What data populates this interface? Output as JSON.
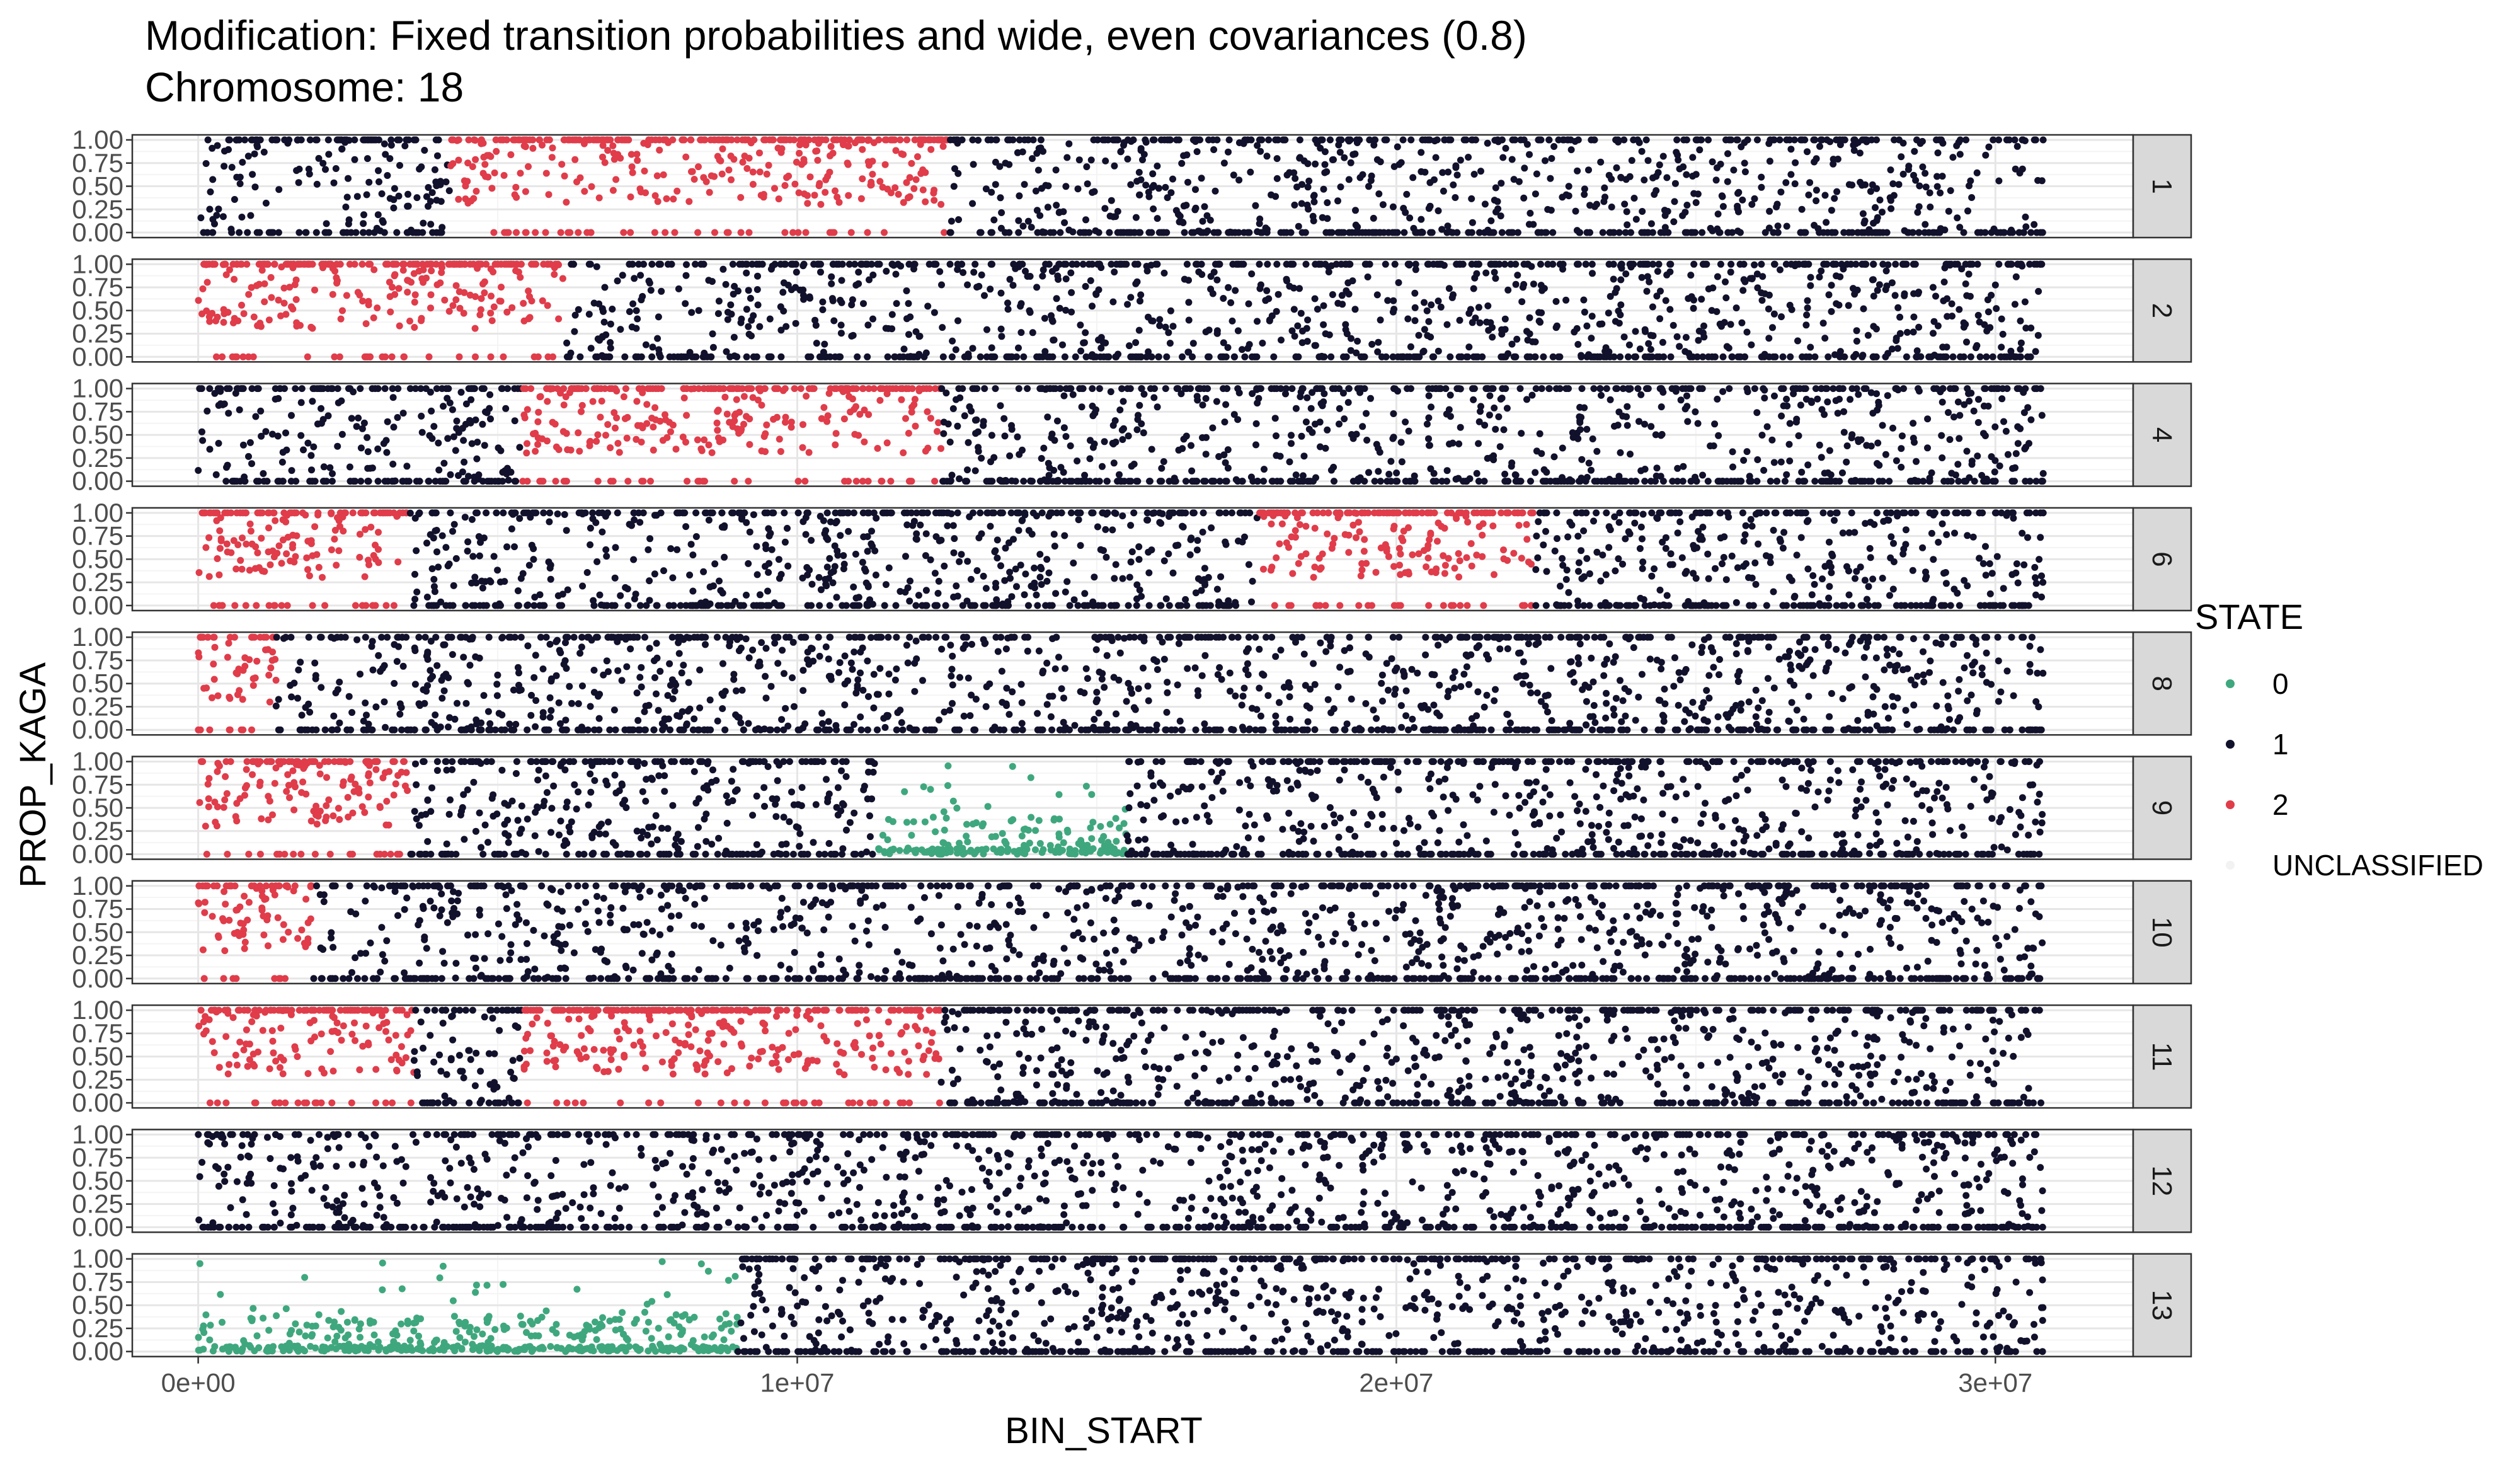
{
  "chart_data": {
    "type": "scatter",
    "title": "Modification:  Fixed transition probabilities and wide, even covariances (0.8)",
    "subtitle": "Chromosome:  18",
    "xlabel": "BIN_START",
    "ylabel": "PROP_KAGA",
    "xlim": [
      -1100000,
      32300000
    ],
    "ylim": [
      0,
      1
    ],
    "x_ticks": [
      {
        "value": 0,
        "label": "0e+00"
      },
      {
        "value": 10000000,
        "label": "1e+07"
      },
      {
        "value": 20000000,
        "label": "2e+07"
      },
      {
        "value": 30000000,
        "label": "3e+07"
      }
    ],
    "y_ticks": [
      {
        "value": 0,
        "label": "0.00"
      },
      {
        "value": 0.25,
        "label": "0.25"
      },
      {
        "value": 0.5,
        "label": "0.50"
      },
      {
        "value": 0.75,
        "label": "0.75"
      },
      {
        "value": 1,
        "label": "1.00"
      }
    ],
    "grid": true,
    "legend": {
      "title": "STATE",
      "position": "right",
      "entries": [
        {
          "label": "0",
          "color": "#3fa77e"
        },
        {
          "label": "1",
          "color": "#12112c"
        },
        {
          "label": "2",
          "color": "#e03c4a"
        },
        {
          "label": "UNCLASSIFIED",
          "color": "#f2f2f2"
        }
      ]
    },
    "panels": [
      {
        "strip": "1",
        "segments": [
          {
            "x0": 0,
            "x1": 4200000,
            "state": "1"
          },
          {
            "x0": 4200000,
            "x1": 12500000,
            "state": "2"
          },
          {
            "x0": 12500000,
            "x1": 30800000,
            "state": "1"
          }
        ]
      },
      {
        "strip": "2",
        "segments": [
          {
            "x0": 0,
            "x1": 6100000,
            "state": "2"
          },
          {
            "x0": 6100000,
            "x1": 30800000,
            "state": "1"
          }
        ]
      },
      {
        "strip": "4",
        "segments": [
          {
            "x0": 0,
            "x1": 5400000,
            "state": "1"
          },
          {
            "x0": 5400000,
            "x1": 12400000,
            "state": "2"
          },
          {
            "x0": 12400000,
            "x1": 30800000,
            "state": "1"
          }
        ]
      },
      {
        "strip": "6",
        "segments": [
          {
            "x0": 0,
            "x1": 3500000,
            "state": "2"
          },
          {
            "x0": 3500000,
            "x1": 17700000,
            "state": "1"
          },
          {
            "x0": 17700000,
            "x1": 22300000,
            "state": "2"
          },
          {
            "x0": 22300000,
            "x1": 30800000,
            "state": "1"
          }
        ]
      },
      {
        "strip": "8",
        "segments": [
          {
            "x0": 0,
            "x1": 1300000,
            "state": "2"
          },
          {
            "x0": 1300000,
            "x1": 30800000,
            "state": "1"
          }
        ]
      },
      {
        "strip": "9",
        "segments": [
          {
            "x0": 0,
            "x1": 3500000,
            "state": "2"
          },
          {
            "x0": 3500000,
            "x1": 11300000,
            "state": "1"
          },
          {
            "x0": 11300000,
            "x1": 15500000,
            "state": "0"
          },
          {
            "x0": 15500000,
            "x1": 30800000,
            "state": "1"
          }
        ]
      },
      {
        "strip": "10",
        "segments": [
          {
            "x0": 0,
            "x1": 1900000,
            "state": "2"
          },
          {
            "x0": 1900000,
            "x1": 30800000,
            "state": "1"
          }
        ]
      },
      {
        "strip": "11",
        "segments": [
          {
            "x0": 0,
            "x1": 3600000,
            "state": "2"
          },
          {
            "x0": 3600000,
            "x1": 5400000,
            "state": "1"
          },
          {
            "x0": 5400000,
            "x1": 12400000,
            "state": "2"
          },
          {
            "x0": 12400000,
            "x1": 30800000,
            "state": "1"
          }
        ]
      },
      {
        "strip": "12",
        "segments": [
          {
            "x0": 0,
            "x1": 30800000,
            "state": "1"
          }
        ]
      },
      {
        "strip": "13",
        "segments": [
          {
            "x0": 0,
            "x1": 9000000,
            "state": "0"
          },
          {
            "x0": 9000000,
            "x1": 30800000,
            "state": "1"
          }
        ]
      }
    ]
  }
}
